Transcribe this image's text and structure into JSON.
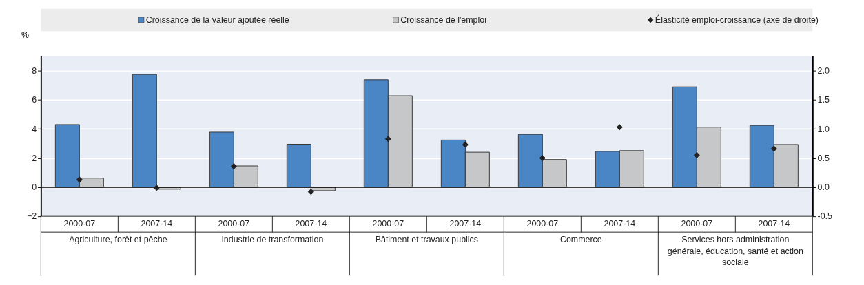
{
  "chart_data": {
    "type": "bar",
    "ylabel": "%",
    "categories": [
      "2000-07",
      "2007-14",
      "2000-07",
      "2007-14",
      "2000-07",
      "2007-14",
      "2000-07",
      "2007-14",
      "2000-07",
      "2007-14"
    ],
    "annotations": [
      "Agriculture, forêt et pêche",
      "Industrie de transformation",
      "Bâtiment et travaux publics",
      "Commerce",
      "Services hors administration générale, éducation, santé et action sociale"
    ],
    "series": [
      {
        "name": "Croissance de la valeur ajoutée réelle",
        "color": "#4a86c6",
        "values": [
          4.3,
          7.74,
          3.78,
          2.95,
          7.38,
          3.24,
          3.63,
          2.46,
          6.89,
          4.24
        ]
      },
      {
        "name": "Croissance de l'emploi",
        "color": "#c6c7c9",
        "values": [
          0.62,
          -0.14,
          1.46,
          -0.24,
          6.28,
          2.4,
          1.9,
          2.51,
          4.12,
          2.93
        ]
      },
      {
        "name": "Élasticité emploi-croissance (axe de droite)",
        "type": "scatter",
        "axis": "y2",
        "marker": "diamond",
        "color": "#222222",
        "values": [
          0.13,
          -0.01,
          0.36,
          -0.08,
          0.83,
          0.73,
          0.5,
          1.03,
          0.55,
          0.66
        ]
      }
    ],
    "ylim": [
      -2,
      9
    ],
    "yticks": [
      -2,
      0,
      2,
      4,
      6,
      8
    ],
    "y2lim": [
      -0.5,
      2.25
    ],
    "y2ticks": [
      {
        "value": -0.5,
        "label": "-0.5"
      },
      {
        "value": 0,
        "label": "0.0"
      },
      {
        "value": 0.5,
        "label": "0.5"
      },
      {
        "value": 1,
        "label": "1.0"
      },
      {
        "value": 1.5,
        "label": "1.5"
      },
      {
        "value": 2,
        "label": "2.0"
      }
    ],
    "ref_lines": [
      {
        "axis": "y",
        "value": 0,
        "color": "#000000"
      }
    ],
    "grid": true,
    "legend": "top"
  }
}
